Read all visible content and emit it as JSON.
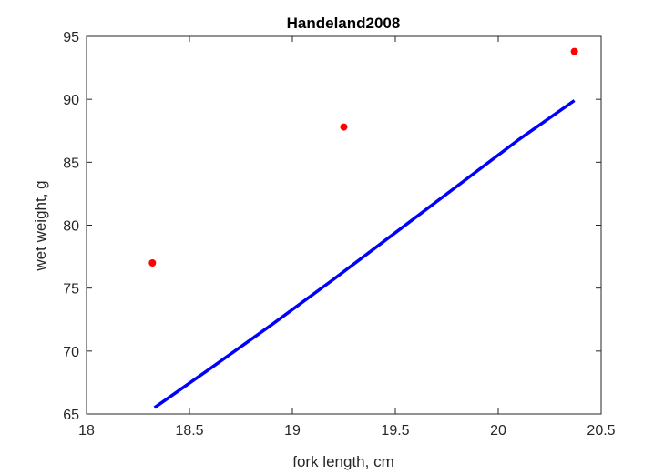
{
  "chart_data": {
    "type": "scatter",
    "title": "Handeland2008",
    "xlabel": "fork length, cm",
    "ylabel": "wet weight, g",
    "xlim": [
      18,
      20.5
    ],
    "ylim": [
      65,
      95
    ],
    "x_ticks": [
      18,
      18.5,
      19,
      19.5,
      20,
      20.5
    ],
    "y_ticks": [
      65,
      70,
      75,
      80,
      85,
      90,
      95
    ],
    "x_tick_labels": [
      "18",
      "18.5",
      "19",
      "19.5",
      "20",
      "20.5"
    ],
    "y_tick_labels": [
      "65",
      "70",
      "75",
      "80",
      "85",
      "90",
      "95"
    ],
    "grid": false,
    "series": [
      {
        "kind": "scatter",
        "color": "#ff0000",
        "points": [
          {
            "x": 18.32,
            "y": 77.0
          },
          {
            "x": 19.25,
            "y": 87.8
          },
          {
            "x": 20.37,
            "y": 93.8
          }
        ]
      },
      {
        "kind": "line",
        "color": "#0000ff",
        "points": [
          {
            "x": 18.33,
            "y": 65.5
          },
          {
            "x": 18.6,
            "y": 68.6
          },
          {
            "x": 18.9,
            "y": 72.1
          },
          {
            "x": 19.2,
            "y": 75.7
          },
          {
            "x": 19.5,
            "y": 79.4
          },
          {
            "x": 19.8,
            "y": 83.1
          },
          {
            "x": 20.1,
            "y": 86.8
          },
          {
            "x": 20.37,
            "y": 89.9
          }
        ]
      }
    ]
  }
}
